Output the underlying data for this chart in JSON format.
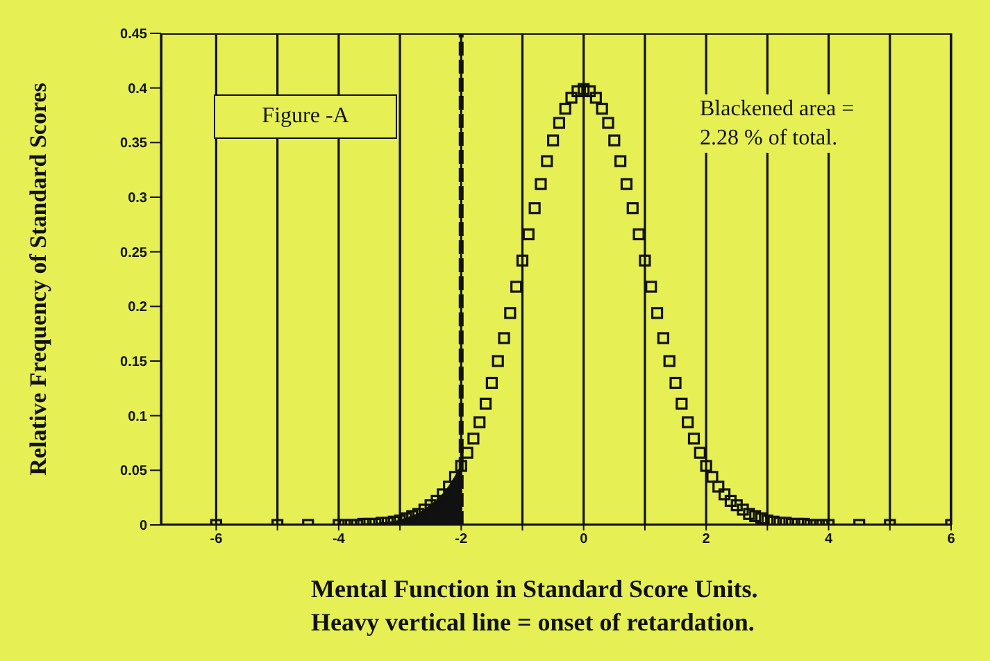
{
  "chart_data": {
    "type": "scatter",
    "xlabel": "Mental Function in Standard Score Units.",
    "ylabel": "Relative Frequency of Standard Scores",
    "annotations": [
      "Figure -A",
      "Blackened area =\n2.28 % of total.",
      "Heavy vertical line = onset of retardation."
    ],
    "xlim": [
      -6.9,
      6
    ],
    "xticks": [
      -6,
      {
        "value": -5,
        "label": null
      },
      -4,
      {
        "value": -3,
        "label": null
      },
      -2,
      {
        "value": -1,
        "label": null
      },
      0,
      {
        "value": 1,
        "label": null
      },
      2,
      {
        "value": 3,
        "label": null
      },
      4,
      {
        "value": 5,
        "label": null
      },
      6
    ],
    "ylim": [
      0,
      0.45
    ],
    "yticks": [
      0,
      0.05,
      0.1,
      0.15,
      0.2,
      0.25,
      0.3,
      0.35,
      0.4,
      0.45
    ],
    "grid": "x",
    "marker": "square",
    "ref_lines": [
      {
        "axis": "x",
        "value": -2,
        "color": "#111111",
        "line_style": "dashed"
      }
    ],
    "series": [
      {
        "type": "area",
        "marker": "none",
        "color": "#111111",
        "x": [
          -4,
          -3.9,
          -3.8,
          -3.7,
          -3.6,
          -3.5,
          -3.4,
          -3.3,
          -3.2,
          -3.1,
          -3,
          -2.9,
          -2.8,
          -2.7,
          -2.6,
          -2.5,
          -2.4,
          -2.3,
          -2.2,
          -2.1,
          -2
        ],
        "values": [
          0,
          0,
          0,
          0,
          0.001,
          0.001,
          0.001,
          0.002,
          0.002,
          0.003,
          0.004,
          0.006,
          0.008,
          0.01,
          0.014,
          0.018,
          0.022,
          0.028,
          0.035,
          0.044,
          0.054
        ]
      },
      {
        "color": "#111111",
        "x": [
          -6,
          -5,
          -4.5,
          -4,
          -3.9,
          -3.8,
          -3.7,
          -3.6,
          -3.5,
          -3.4,
          -3.3,
          -3.2,
          -3.1,
          -3,
          -2.9,
          -2.8,
          -2.7,
          -2.6,
          -2.5,
          -2.4,
          -2.3,
          -2.2,
          -2.1,
          -2,
          -1.9,
          -1.8,
          -1.7,
          -1.6,
          -1.5,
          -1.4,
          -1.3,
          -1.2,
          -1.1,
          -1,
          -0.9,
          -0.8,
          -0.7,
          -0.6,
          -0.5,
          -0.4,
          -0.3,
          -0.2,
          -0.1,
          0,
          0.1,
          0.2,
          0.3,
          0.4,
          0.5,
          0.6,
          0.7,
          0.8,
          0.9,
          1,
          1.1,
          1.2,
          1.3,
          1.4,
          1.5,
          1.6,
          1.7,
          1.8,
          1.9,
          2,
          2.1,
          2.2,
          2.3,
          2.4,
          2.5,
          2.6,
          2.7,
          2.8,
          2.9,
          3,
          3.1,
          3.2,
          3.3,
          3.4,
          3.5,
          3.6,
          3.7,
          3.8,
          3.9,
          4,
          4.5,
          5,
          6
        ],
        "values": [
          0,
          0,
          0,
          0,
          0,
          0,
          0,
          0.001,
          0.001,
          0.001,
          0.002,
          0.002,
          0.003,
          0.004,
          0.006,
          0.008,
          0.01,
          0.014,
          0.018,
          0.022,
          0.028,
          0.035,
          0.044,
          0.054,
          0.066,
          0.079,
          0.094,
          0.111,
          0.13,
          0.15,
          0.171,
          0.194,
          0.218,
          0.242,
          0.266,
          0.29,
          0.312,
          0.333,
          0.352,
          0.368,
          0.381,
          0.391,
          0.397,
          0.399,
          0.397,
          0.391,
          0.381,
          0.368,
          0.352,
          0.333,
          0.312,
          0.29,
          0.266,
          0.242,
          0.218,
          0.194,
          0.171,
          0.15,
          0.13,
          0.111,
          0.094,
          0.079,
          0.066,
          0.054,
          0.044,
          0.035,
          0.028,
          0.022,
          0.018,
          0.014,
          0.01,
          0.008,
          0.006,
          0.004,
          0.003,
          0.002,
          0.002,
          0.001,
          0.001,
          0.001,
          0,
          0,
          0,
          0,
          0,
          0,
          0
        ]
      }
    ]
  }
}
